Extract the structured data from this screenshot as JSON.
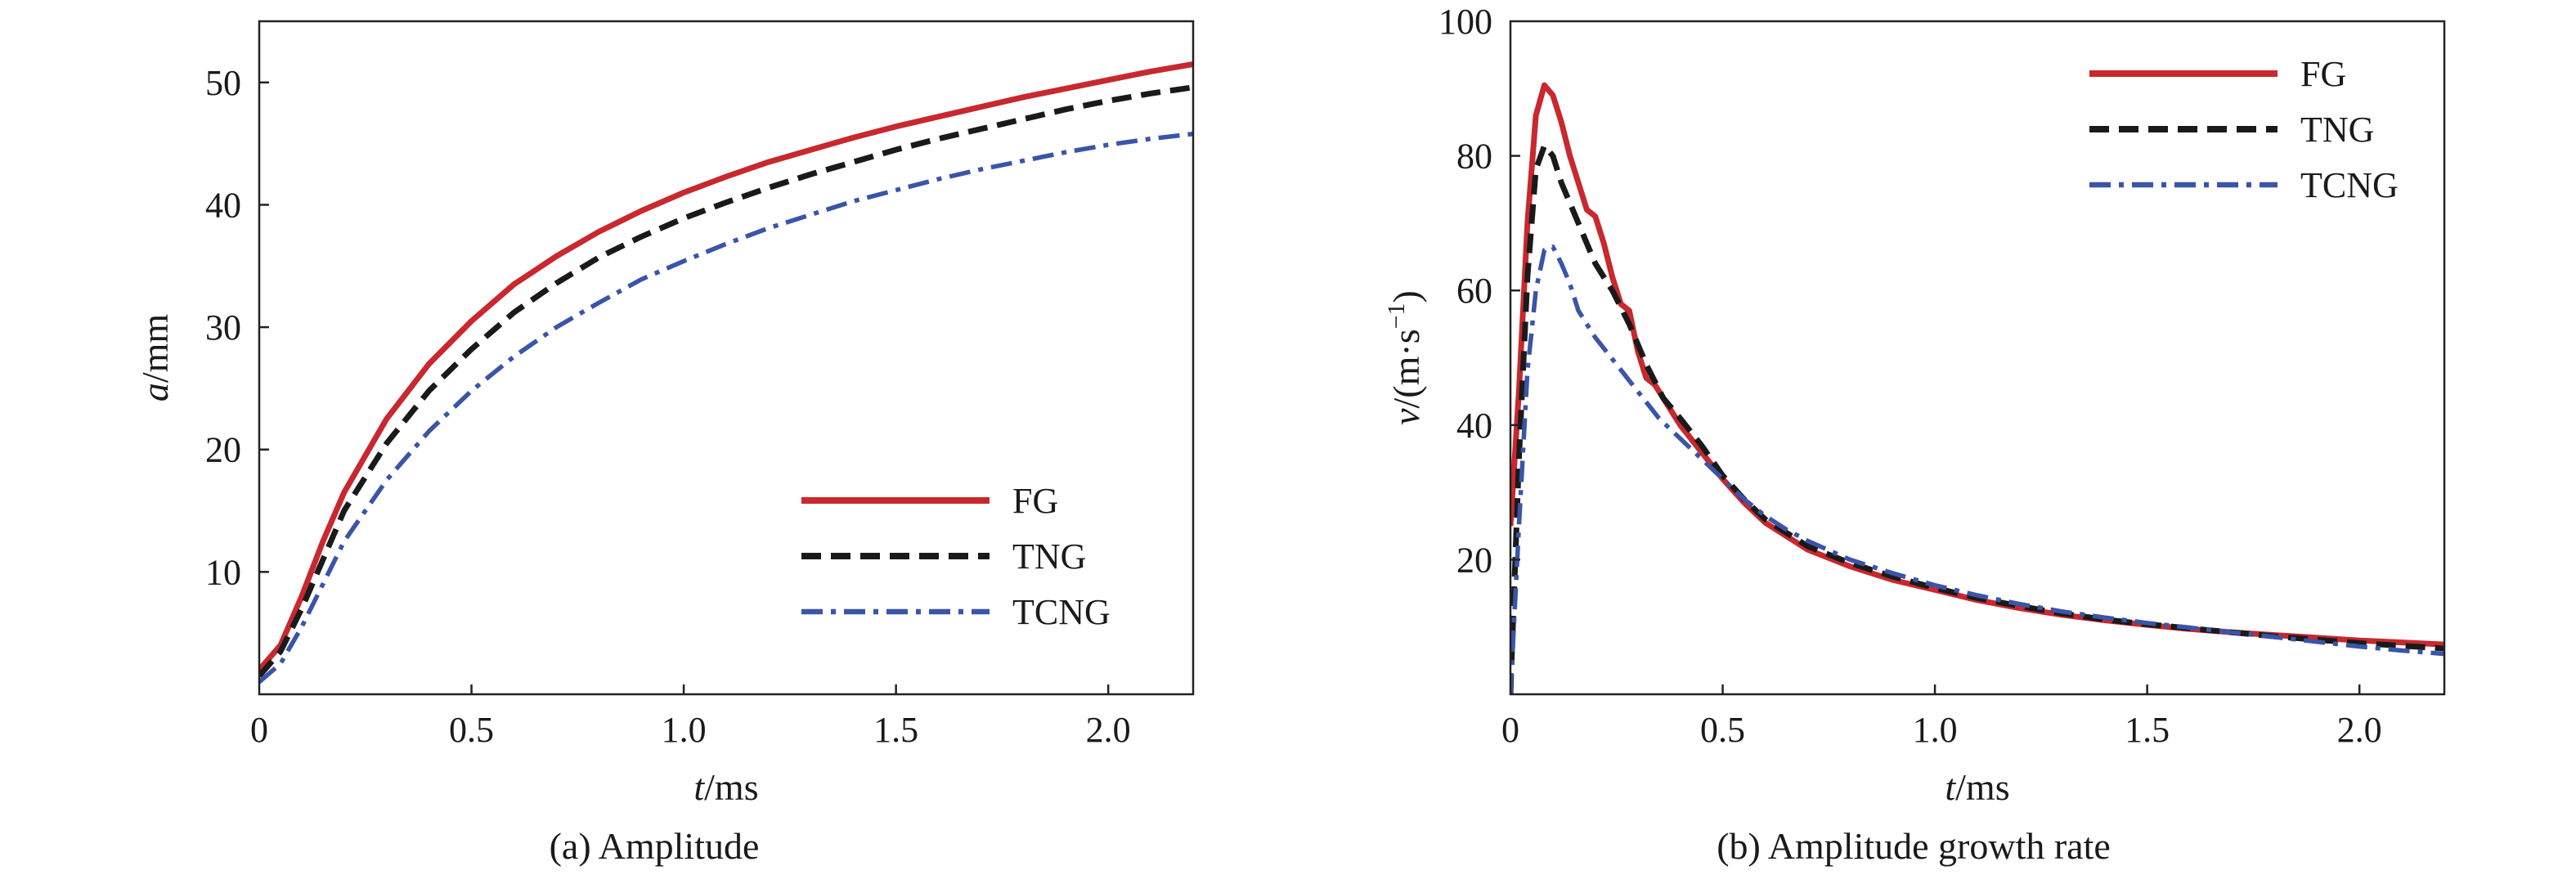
{
  "chart_data": [
    {
      "id": "amplitude",
      "type": "line",
      "caption": "(a) Amplitude",
      "title": "",
      "xlabel": {
        "italic": "t",
        "unit": "/ms"
      },
      "ylabel": {
        "italic": "a",
        "unit": "/mm"
      },
      "xlim": [
        0.0,
        2.2
      ],
      "ylim": [
        0,
        55
      ],
      "xticks": [
        {
          "value": 0.0,
          "label": "0"
        },
        {
          "value": 0.5,
          "label": "0.5"
        },
        {
          "value": 1.0,
          "label": "1.0"
        },
        {
          "value": 1.5,
          "label": "1.5"
        },
        {
          "value": 2.0,
          "label": "2.0"
        }
      ],
      "yticks": [
        {
          "value": 10,
          "label": "10"
        },
        {
          "value": 20,
          "label": "20"
        },
        {
          "value": 30,
          "label": "30"
        },
        {
          "value": 40,
          "label": "40"
        },
        {
          "value": 50,
          "label": "50"
        }
      ],
      "grid": false,
      "legend": "bottom-right",
      "series": [
        {
          "name": "FG",
          "color": "#c8282e",
          "style": "solid",
          "points": [
            [
              0.0,
              2
            ],
            [
              0.05,
              4
            ],
            [
              0.1,
              8
            ],
            [
              0.15,
              12.5
            ],
            [
              0.2,
              16.5
            ],
            [
              0.3,
              22.5
            ],
            [
              0.4,
              27
            ],
            [
              0.5,
              30.5
            ],
            [
              0.6,
              33.5
            ],
            [
              0.7,
              35.8
            ],
            [
              0.8,
              37.8
            ],
            [
              0.9,
              39.5
            ],
            [
              1.0,
              41
            ],
            [
              1.1,
              42.3
            ],
            [
              1.2,
              43.5
            ],
            [
              1.3,
              44.5
            ],
            [
              1.4,
              45.5
            ],
            [
              1.5,
              46.4
            ],
            [
              1.6,
              47.2
            ],
            [
              1.7,
              48
            ],
            [
              1.8,
              48.8
            ],
            [
              1.9,
              49.5
            ],
            [
              2.0,
              50.2
            ],
            [
              2.1,
              50.9
            ],
            [
              2.2,
              51.5
            ]
          ]
        },
        {
          "name": "TNG",
          "color": "#1a1a1a",
          "style": "dashed",
          "points": [
            [
              0.0,
              1.5
            ],
            [
              0.05,
              3.5
            ],
            [
              0.1,
              7
            ],
            [
              0.15,
              11
            ],
            [
              0.2,
              15
            ],
            [
              0.3,
              20.5
            ],
            [
              0.4,
              24.8
            ],
            [
              0.5,
              28.2
            ],
            [
              0.6,
              31.2
            ],
            [
              0.7,
              33.6
            ],
            [
              0.8,
              35.7
            ],
            [
              0.9,
              37.4
            ],
            [
              1.0,
              38.9
            ],
            [
              1.1,
              40.2
            ],
            [
              1.2,
              41.4
            ],
            [
              1.3,
              42.5
            ],
            [
              1.4,
              43.5
            ],
            [
              1.5,
              44.5
            ],
            [
              1.6,
              45.4
            ],
            [
              1.7,
              46.2
            ],
            [
              1.8,
              47
            ],
            [
              1.9,
              47.8
            ],
            [
              2.0,
              48.5
            ],
            [
              2.1,
              49.1
            ],
            [
              2.2,
              49.6
            ]
          ]
        },
        {
          "name": "TCNG",
          "color": "#3a55a8",
          "style": "dashdot",
          "points": [
            [
              0.0,
              1
            ],
            [
              0.05,
              2.5
            ],
            [
              0.1,
              5.5
            ],
            [
              0.15,
              9
            ],
            [
              0.2,
              12.5
            ],
            [
              0.3,
              17.5
            ],
            [
              0.4,
              21.5
            ],
            [
              0.5,
              24.8
            ],
            [
              0.6,
              27.6
            ],
            [
              0.7,
              30
            ],
            [
              0.8,
              32
            ],
            [
              0.9,
              33.9
            ],
            [
              1.0,
              35.4
            ],
            [
              1.1,
              36.8
            ],
            [
              1.2,
              38.1
            ],
            [
              1.3,
              39.2
            ],
            [
              1.4,
              40.3
            ],
            [
              1.5,
              41.2
            ],
            [
              1.6,
              42.1
            ],
            [
              1.7,
              42.9
            ],
            [
              1.8,
              43.6
            ],
            [
              1.9,
              44.3
            ],
            [
              2.0,
              44.9
            ],
            [
              2.1,
              45.4
            ],
            [
              2.2,
              45.8
            ]
          ]
        }
      ]
    },
    {
      "id": "growth-rate",
      "type": "line",
      "caption": "(b) Amplitude growth rate",
      "title": "",
      "xlabel": {
        "italic": "t",
        "unit": "/ms"
      },
      "ylabel": {
        "italic": "v",
        "unit": "/(m·s",
        "sup": "−1",
        "close": ")"
      },
      "xlim": [
        0.0,
        2.2
      ],
      "ylim": [
        0,
        100
      ],
      "xticks": [
        {
          "value": 0.0,
          "label": "0"
        },
        {
          "value": 0.5,
          "label": "0.5"
        },
        {
          "value": 1.0,
          "label": "1.0"
        },
        {
          "value": 1.5,
          "label": "1.5"
        },
        {
          "value": 2.0,
          "label": "2.0"
        }
      ],
      "yticks": [
        {
          "value": 20,
          "label": "20"
        },
        {
          "value": 40,
          "label": "40"
        },
        {
          "value": 60,
          "label": "60"
        },
        {
          "value": 80,
          "label": "80"
        },
        {
          "value": 100,
          "label": "100"
        }
      ],
      "grid": false,
      "legend": "top-right",
      "series": [
        {
          "name": "FG",
          "color": "#c8282e",
          "style": "solid",
          "points": [
            [
              0.0,
              25
            ],
            [
              0.02,
              45
            ],
            [
              0.04,
              70
            ],
            [
              0.06,
              86
            ],
            [
              0.08,
              90.5
            ],
            [
              0.1,
              89
            ],
            [
              0.12,
              85
            ],
            [
              0.14,
              80
            ],
            [
              0.16,
              76
            ],
            [
              0.18,
              72
            ],
            [
              0.2,
              71
            ],
            [
              0.22,
              67
            ],
            [
              0.24,
              62
            ],
            [
              0.26,
              58
            ],
            [
              0.28,
              57
            ],
            [
              0.3,
              51
            ],
            [
              0.32,
              47
            ],
            [
              0.34,
              46
            ],
            [
              0.36,
              44
            ],
            [
              0.4,
              40
            ],
            [
              0.45,
              36
            ],
            [
              0.5,
              32
            ],
            [
              0.55,
              28.5
            ],
            [
              0.6,
              25.5
            ],
            [
              0.65,
              23.5
            ],
            [
              0.7,
              21.5
            ],
            [
              0.8,
              19
            ],
            [
              0.9,
              17
            ],
            [
              1.0,
              15.5
            ],
            [
              1.1,
              14
            ],
            [
              1.2,
              12.8
            ],
            [
              1.3,
              11.8
            ],
            [
              1.4,
              11
            ],
            [
              1.5,
              10.3
            ],
            [
              1.6,
              9.7
            ],
            [
              1.7,
              9.2
            ],
            [
              1.8,
              8.8
            ],
            [
              1.9,
              8.4
            ],
            [
              2.0,
              8
            ],
            [
              2.1,
              7.7
            ],
            [
              2.2,
              7.4
            ]
          ]
        },
        {
          "name": "TNG",
          "color": "#1a1a1a",
          "style": "dashed",
          "points": [
            [
              0.0,
              0
            ],
            [
              0.02,
              35
            ],
            [
              0.04,
              62
            ],
            [
              0.06,
              78
            ],
            [
              0.08,
              81.5
            ],
            [
              0.1,
              80
            ],
            [
              0.12,
              76
            ],
            [
              0.14,
              73
            ],
            [
              0.16,
              70
            ],
            [
              0.18,
              67
            ],
            [
              0.2,
              64
            ],
            [
              0.24,
              60
            ],
            [
              0.28,
              55
            ],
            [
              0.32,
              49
            ],
            [
              0.36,
              44
            ],
            [
              0.4,
              41
            ],
            [
              0.45,
              37
            ],
            [
              0.5,
              32.5
            ],
            [
              0.55,
              29
            ],
            [
              0.6,
              26
            ],
            [
              0.65,
              24
            ],
            [
              0.7,
              22
            ],
            [
              0.8,
              19.5
            ],
            [
              0.9,
              17.5
            ],
            [
              1.0,
              15.8
            ],
            [
              1.1,
              14.3
            ],
            [
              1.2,
              13.1
            ],
            [
              1.3,
              12
            ],
            [
              1.4,
              11.1
            ],
            [
              1.5,
              10.4
            ],
            [
              1.6,
              9.8
            ],
            [
              1.7,
              9.2
            ],
            [
              1.8,
              8.6
            ],
            [
              1.9,
              8.1
            ],
            [
              2.0,
              7.6
            ],
            [
              2.1,
              7.2
            ],
            [
              2.2,
              6.8
            ]
          ]
        },
        {
          "name": "TCNG",
          "color": "#3a55a8",
          "style": "dashdot",
          "points": [
            [
              0.0,
              0
            ],
            [
              0.02,
              25
            ],
            [
              0.04,
              48
            ],
            [
              0.06,
              60
            ],
            [
              0.08,
              66
            ],
            [
              0.1,
              66.5
            ],
            [
              0.12,
              64
            ],
            [
              0.14,
              61
            ],
            [
              0.16,
              57
            ],
            [
              0.2,
              53
            ],
            [
              0.25,
              49
            ],
            [
              0.3,
              45
            ],
            [
              0.35,
              41
            ],
            [
              0.4,
              38
            ],
            [
              0.45,
              35
            ],
            [
              0.5,
              32
            ],
            [
              0.55,
              29
            ],
            [
              0.6,
              26.5
            ],
            [
              0.65,
              24.5
            ],
            [
              0.7,
              22.8
            ],
            [
              0.8,
              20
            ],
            [
              0.9,
              18
            ],
            [
              1.0,
              16.2
            ],
            [
              1.1,
              14.7
            ],
            [
              1.2,
              13.4
            ],
            [
              1.3,
              12.3
            ],
            [
              1.4,
              11.4
            ],
            [
              1.5,
              10.6
            ],
            [
              1.6,
              9.9
            ],
            [
              1.7,
              9.2
            ],
            [
              1.8,
              8.5
            ],
            [
              1.9,
              7.8
            ],
            [
              2.0,
              7.1
            ],
            [
              2.1,
              6.5
            ],
            [
              2.2,
              6
            ]
          ]
        }
      ]
    }
  ]
}
